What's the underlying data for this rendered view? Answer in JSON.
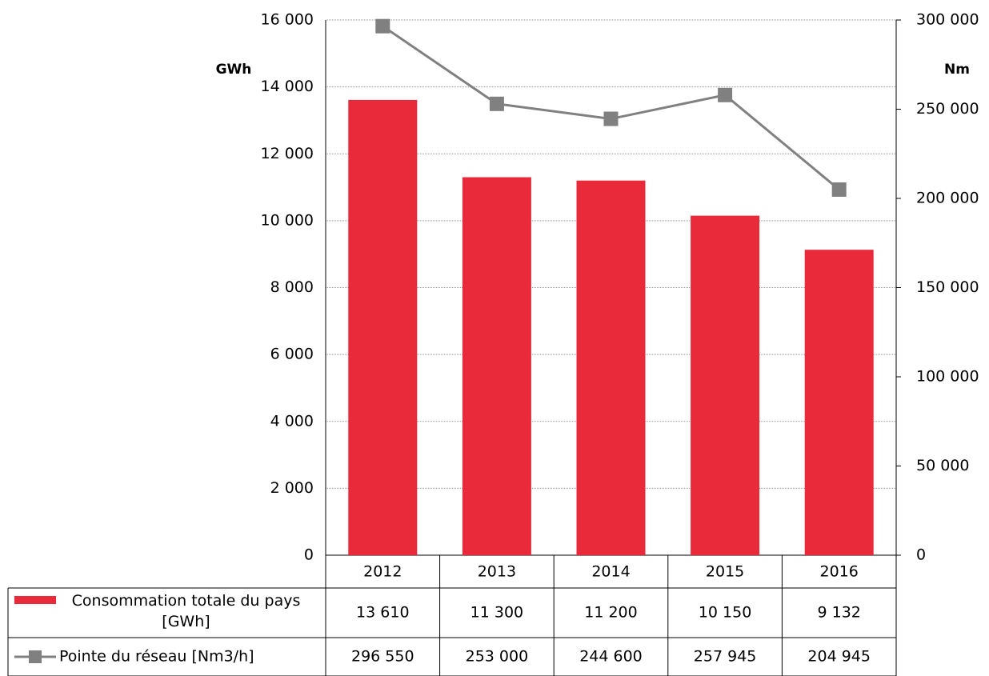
{
  "chart_data": {
    "type": "bar",
    "categories": [
      "2012",
      "2013",
      "2014",
      "2015",
      "2016"
    ],
    "series": [
      {
        "name": "Consommation totale du pays [GWh]",
        "type": "bar",
        "color": "#e92a3a",
        "values": [
          13610,
          11300,
          11200,
          10150,
          9132
        ],
        "value_labels": [
          "13 610",
          "11 300",
          "11 200",
          "10 150",
          "9 132"
        ]
      },
      {
        "name": "Pointe du réseau [Nm3/h]",
        "type": "line",
        "axis": "y2",
        "color": "#808080",
        "values": [
          296550,
          253000,
          244600,
          257945,
          204945
        ],
        "value_labels": [
          "296 550",
          "253 000",
          "244 600",
          "257 945",
          "204 945"
        ]
      }
    ],
    "y_label": "GWh",
    "y2_label": "Nm",
    "ylim": [
      0,
      16000
    ],
    "yticks": [
      0,
      {
        "value": 2000,
        "label": "2 000"
      },
      {
        "value": 4000,
        "label": "4 000"
      },
      {
        "value": 6000,
        "label": "6 000"
      },
      {
        "value": 8000,
        "label": "8 000"
      },
      {
        "value": 10000,
        "label": "10 000"
      },
      {
        "value": 12000,
        "label": "12 000"
      },
      {
        "value": 14000,
        "label": "14 000"
      },
      {
        "value": 16000,
        "label": "16 000"
      }
    ],
    "y2lim": [
      0,
      300000
    ],
    "y2ticks": [
      0,
      {
        "value": 50000,
        "label": "50 000"
      },
      {
        "value": 100000,
        "label": "100 000"
      },
      {
        "value": 150000,
        "label": "150 000"
      },
      {
        "value": 200000,
        "label": "200 000"
      },
      {
        "value": 250000,
        "label": "250 000"
      },
      {
        "value": 300000,
        "label": "300 000"
      }
    ],
    "grid": true
  }
}
